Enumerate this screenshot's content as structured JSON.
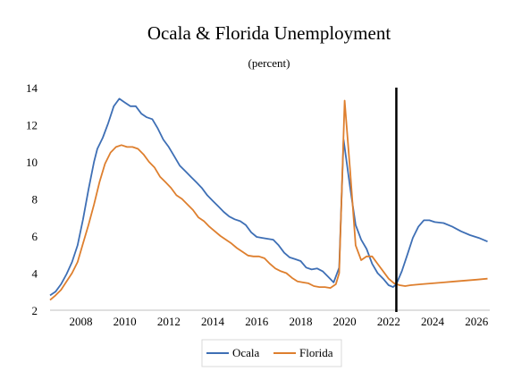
{
  "chart_data": {
    "type": "line",
    "title": "Ocala & Florida Unemployment",
    "subtitle": "(percent)",
    "xlabel": "",
    "ylabel": "",
    "xlim": [
      2006.6,
      2026.6
    ],
    "ylim": [
      2,
      14
    ],
    "yticks": [
      2,
      4,
      6,
      8,
      10,
      12,
      14
    ],
    "xticks": [
      2008,
      2010,
      2012,
      2014,
      2016,
      2018,
      2020,
      2022,
      2024,
      2026
    ],
    "grid": false,
    "legend_position": "bottom",
    "vertical_marker": {
      "x": 2022.35,
      "label": ""
    },
    "series": [
      {
        "name": "Ocala",
        "color": "#3e6fb5",
        "points": [
          [
            2006.6,
            2.8
          ],
          [
            2006.85,
            3.0
          ],
          [
            2007.1,
            3.4
          ],
          [
            2007.35,
            3.95
          ],
          [
            2007.6,
            4.6
          ],
          [
            2007.85,
            5.5
          ],
          [
            2008.1,
            6.9
          ],
          [
            2008.35,
            8.5
          ],
          [
            2008.6,
            10.0
          ],
          [
            2008.75,
            10.7
          ],
          [
            2009.0,
            11.3
          ],
          [
            2009.25,
            12.1
          ],
          [
            2009.5,
            13.0
          ],
          [
            2009.75,
            13.4
          ],
          [
            2010.0,
            13.2
          ],
          [
            2010.25,
            13.0
          ],
          [
            2010.5,
            13.0
          ],
          [
            2010.75,
            12.6
          ],
          [
            2011.0,
            12.4
          ],
          [
            2011.25,
            12.3
          ],
          [
            2011.5,
            11.8
          ],
          [
            2011.75,
            11.2
          ],
          [
            2012.0,
            10.8
          ],
          [
            2012.25,
            10.3
          ],
          [
            2012.5,
            9.8
          ],
          [
            2012.75,
            9.5
          ],
          [
            2013.0,
            9.2
          ],
          [
            2013.25,
            8.9
          ],
          [
            2013.5,
            8.6
          ],
          [
            2013.75,
            8.2
          ],
          [
            2014.0,
            7.9
          ],
          [
            2014.25,
            7.6
          ],
          [
            2014.5,
            7.3
          ],
          [
            2014.75,
            7.05
          ],
          [
            2015.0,
            6.9
          ],
          [
            2015.25,
            6.8
          ],
          [
            2015.5,
            6.6
          ],
          [
            2015.75,
            6.2
          ],
          [
            2016.0,
            5.95
          ],
          [
            2016.25,
            5.9
          ],
          [
            2016.5,
            5.85
          ],
          [
            2016.75,
            5.8
          ],
          [
            2017.0,
            5.5
          ],
          [
            2017.25,
            5.1
          ],
          [
            2017.5,
            4.85
          ],
          [
            2017.75,
            4.75
          ],
          [
            2018.0,
            4.65
          ],
          [
            2018.25,
            4.3
          ],
          [
            2018.5,
            4.2
          ],
          [
            2018.75,
            4.25
          ],
          [
            2019.0,
            4.1
          ],
          [
            2019.25,
            3.8
          ],
          [
            2019.5,
            3.5
          ],
          [
            2019.75,
            4.3
          ],
          [
            2019.95,
            11.2
          ],
          [
            2020.25,
            8.6
          ],
          [
            2020.5,
            6.6
          ],
          [
            2020.75,
            5.8
          ],
          [
            2021.0,
            5.3
          ],
          [
            2021.25,
            4.5
          ],
          [
            2021.5,
            4.0
          ],
          [
            2021.75,
            3.7
          ],
          [
            2022.0,
            3.35
          ],
          [
            2022.2,
            3.25
          ],
          [
            2022.35,
            3.4
          ],
          [
            2022.6,
            4.1
          ],
          [
            2022.85,
            5.0
          ],
          [
            2023.1,
            5.9
          ],
          [
            2023.35,
            6.5
          ],
          [
            2023.6,
            6.85
          ],
          [
            2023.85,
            6.85
          ],
          [
            2024.1,
            6.75
          ],
          [
            2024.5,
            6.7
          ],
          [
            2024.9,
            6.5
          ],
          [
            2025.3,
            6.25
          ],
          [
            2025.7,
            6.05
          ],
          [
            2026.1,
            5.9
          ],
          [
            2026.5,
            5.7
          ]
        ]
      },
      {
        "name": "Florida",
        "color": "#de7f2e",
        "points": [
          [
            2006.6,
            2.55
          ],
          [
            2006.85,
            2.8
          ],
          [
            2007.1,
            3.1
          ],
          [
            2007.35,
            3.55
          ],
          [
            2007.6,
            4.0
          ],
          [
            2007.85,
            4.6
          ],
          [
            2008.1,
            5.6
          ],
          [
            2008.35,
            6.6
          ],
          [
            2008.6,
            7.7
          ],
          [
            2008.85,
            8.9
          ],
          [
            2009.1,
            9.9
          ],
          [
            2009.35,
            10.5
          ],
          [
            2009.6,
            10.8
          ],
          [
            2009.85,
            10.9
          ],
          [
            2010.1,
            10.8
          ],
          [
            2010.35,
            10.8
          ],
          [
            2010.6,
            10.7
          ],
          [
            2010.85,
            10.4
          ],
          [
            2011.1,
            10.0
          ],
          [
            2011.35,
            9.7
          ],
          [
            2011.6,
            9.2
          ],
          [
            2011.85,
            8.9
          ],
          [
            2012.1,
            8.6
          ],
          [
            2012.35,
            8.2
          ],
          [
            2012.6,
            8.0
          ],
          [
            2012.85,
            7.7
          ],
          [
            2013.1,
            7.4
          ],
          [
            2013.35,
            7.0
          ],
          [
            2013.6,
            6.8
          ],
          [
            2013.85,
            6.5
          ],
          [
            2014.1,
            6.25
          ],
          [
            2014.35,
            6.0
          ],
          [
            2014.6,
            5.8
          ],
          [
            2014.85,
            5.6
          ],
          [
            2015.1,
            5.35
          ],
          [
            2015.35,
            5.15
          ],
          [
            2015.6,
            4.95
          ],
          [
            2015.85,
            4.9
          ],
          [
            2016.1,
            4.9
          ],
          [
            2016.35,
            4.8
          ],
          [
            2016.6,
            4.5
          ],
          [
            2016.85,
            4.25
          ],
          [
            2017.1,
            4.1
          ],
          [
            2017.35,
            4.0
          ],
          [
            2017.6,
            3.75
          ],
          [
            2017.85,
            3.55
          ],
          [
            2018.1,
            3.5
          ],
          [
            2018.35,
            3.45
          ],
          [
            2018.6,
            3.3
          ],
          [
            2018.85,
            3.25
          ],
          [
            2019.1,
            3.25
          ],
          [
            2019.35,
            3.2
          ],
          [
            2019.6,
            3.4
          ],
          [
            2019.75,
            4.0
          ],
          [
            2020.0,
            13.3
          ],
          [
            2020.25,
            9.5
          ],
          [
            2020.5,
            5.5
          ],
          [
            2020.75,
            4.7
          ],
          [
            2021.0,
            4.9
          ],
          [
            2021.25,
            4.9
          ],
          [
            2021.5,
            4.5
          ],
          [
            2021.75,
            4.1
          ],
          [
            2022.0,
            3.7
          ],
          [
            2022.25,
            3.45
          ],
          [
            2022.5,
            3.35
          ],
          [
            2022.75,
            3.3
          ],
          [
            2023.0,
            3.35
          ],
          [
            2023.5,
            3.4
          ],
          [
            2024.0,
            3.45
          ],
          [
            2024.5,
            3.5
          ],
          [
            2025.0,
            3.55
          ],
          [
            2025.5,
            3.6
          ],
          [
            2026.0,
            3.65
          ],
          [
            2026.5,
            3.7
          ]
        ]
      }
    ]
  }
}
